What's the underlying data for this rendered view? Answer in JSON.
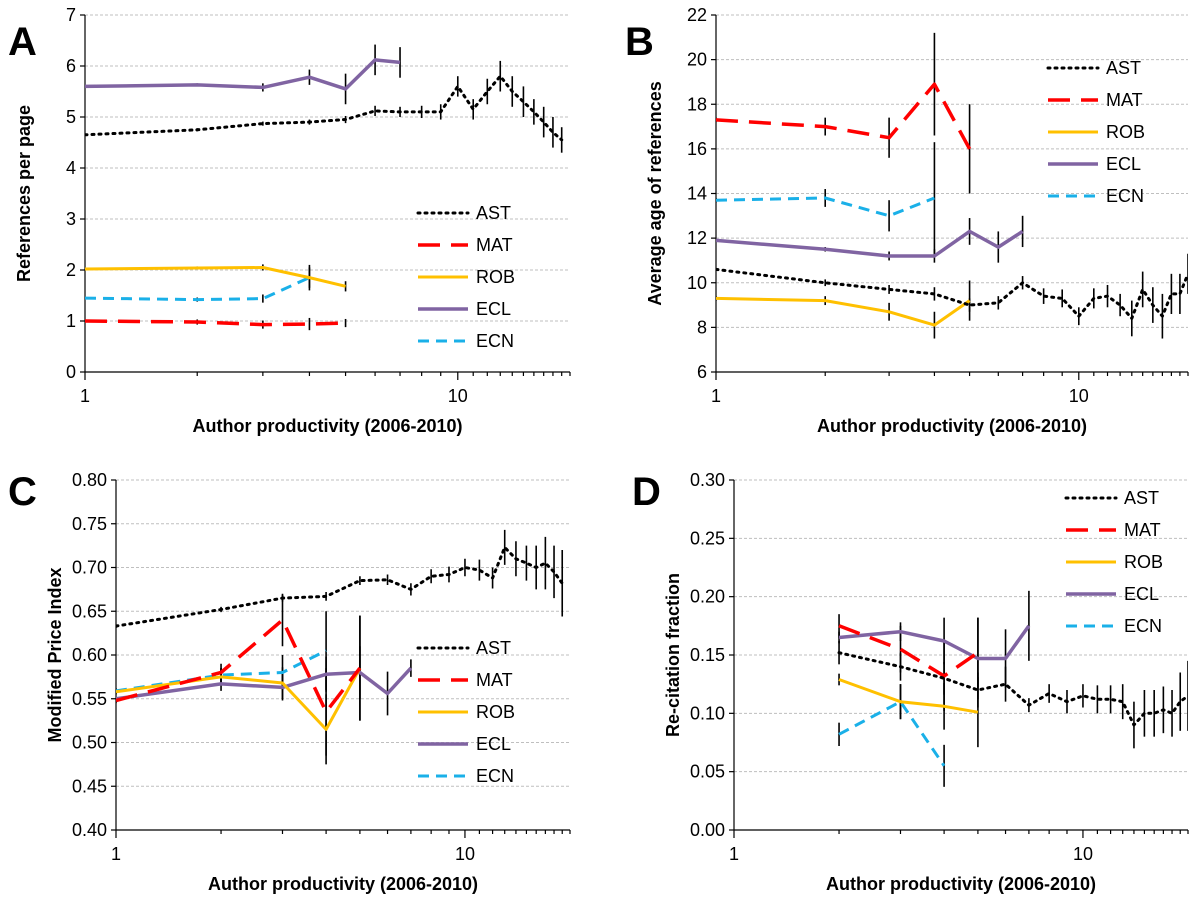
{
  "series_styles": {
    "AST": {
      "color": "#000000",
      "dash": "2,5",
      "width": 3
    },
    "MAT": {
      "color": "#ff0000",
      "dash": "22,11",
      "width": 3.5
    },
    "ROB": {
      "color": "#ffc000",
      "dash": "",
      "width": 3
    },
    "ECL": {
      "color": "#8064a2",
      "dash": "",
      "width": 3.5
    },
    "ECN": {
      "color": "#1ab0e8",
      "dash": "11,7",
      "width": 3
    }
  },
  "chart_data": [
    {
      "type": "line",
      "panel_letter": "A",
      "xlabel": "Author productivity (2006-2010)",
      "ylabel": "References per page",
      "xscale": "log",
      "xlim": [
        1,
        20
      ],
      "xticks": [
        1,
        10
      ],
      "xtick_labels": [
        "1",
        "10"
      ],
      "ylim": [
        0,
        7
      ],
      "yticks": [
        0,
        1,
        2,
        3,
        4,
        5,
        6,
        7
      ],
      "ytick_labels": [
        "0",
        "1",
        "2",
        "3",
        "4",
        "5",
        "6",
        "7"
      ],
      "grid": "horizontal",
      "legend_position": "right",
      "legend": [
        "AST",
        "MAT",
        "ROB",
        "ECL",
        "ECN"
      ],
      "series": [
        {
          "name": "AST",
          "x": [
            1,
            2,
            3,
            4,
            5,
            6,
            7,
            8,
            9,
            10,
            11,
            12,
            13,
            14,
            15,
            16,
            17,
            18,
            19
          ],
          "y": [
            4.65,
            4.75,
            4.87,
            4.9,
            4.95,
            5.12,
            5.1,
            5.1,
            5.1,
            5.6,
            5.15,
            5.5,
            5.8,
            5.5,
            5.3,
            5.1,
            4.9,
            4.7,
            4.55
          ],
          "err": [
            0.02,
            0.03,
            0.04,
            0.05,
            0.07,
            0.1,
            0.1,
            0.12,
            0.15,
            0.2,
            0.2,
            0.25,
            0.3,
            0.3,
            0.3,
            0.25,
            0.3,
            0.3,
            0.25
          ]
        },
        {
          "name": "MAT",
          "x": [
            1,
            2,
            3,
            4,
            5
          ],
          "y": [
            1.0,
            0.98,
            0.93,
            0.94,
            0.96
          ],
          "err": [
            0.02,
            0.05,
            0.08,
            0.12,
            0.08
          ]
        },
        {
          "name": "ROB",
          "x": [
            1,
            2,
            3,
            4,
            5
          ],
          "y": [
            2.02,
            2.04,
            2.05,
            1.85,
            1.68
          ],
          "err": [
            0.02,
            0.03,
            0.06,
            0.25,
            0.1
          ]
        },
        {
          "name": "ECL",
          "x": [
            1,
            2,
            3,
            4,
            5,
            6,
            7
          ],
          "y": [
            5.6,
            5.63,
            5.58,
            5.78,
            5.55,
            6.12,
            6.07
          ],
          "err": [
            0.02,
            0.03,
            0.08,
            0.15,
            0.3,
            0.3,
            0.3
          ]
        },
        {
          "name": "ECN",
          "x": [
            1,
            2,
            3,
            4
          ],
          "y": [
            1.45,
            1.42,
            1.44,
            1.85
          ],
          "err": [
            0.02,
            0.04,
            0.08,
            0.2
          ]
        }
      ]
    },
    {
      "type": "line",
      "panel_letter": "B",
      "xlabel": "Author productivity (2006-2010)",
      "ylabel": "Average age of references",
      "xscale": "log",
      "xlim": [
        1,
        20
      ],
      "xticks": [
        1,
        10
      ],
      "xtick_labels": [
        "1",
        "10"
      ],
      "ylim": [
        6,
        22
      ],
      "yticks": [
        6,
        8,
        10,
        12,
        14,
        16,
        18,
        20,
        22
      ],
      "ytick_labels": [
        "6",
        "8",
        "10",
        "12",
        "14",
        "16",
        "18",
        "20",
        "22"
      ],
      "grid": "horizontal",
      "legend_position": "top-right",
      "legend": [
        "AST",
        "MAT",
        "ROB",
        "ECL",
        "ECN"
      ],
      "series": [
        {
          "name": "AST",
          "x": [
            1,
            2,
            3,
            4,
            5,
            6,
            7,
            8,
            9,
            10,
            11,
            12,
            13,
            14,
            15,
            16,
            17,
            18,
            19,
            20
          ],
          "y": [
            10.6,
            10.0,
            9.7,
            9.5,
            9.0,
            9.1,
            10.0,
            9.4,
            9.3,
            8.5,
            9.3,
            9.4,
            9.0,
            8.4,
            9.7,
            9.0,
            8.5,
            9.5,
            9.5,
            10.4
          ],
          "err": [
            0.05,
            0.15,
            0.2,
            0.3,
            0.3,
            0.3,
            0.3,
            0.35,
            0.4,
            0.4,
            0.45,
            0.5,
            0.5,
            0.8,
            0.8,
            0.8,
            1.0,
            0.9,
            0.9,
            0.9
          ]
        },
        {
          "name": "MAT",
          "x": [
            1,
            2,
            3,
            4,
            5
          ],
          "y": [
            17.3,
            17.0,
            16.5,
            18.9,
            16.0
          ],
          "err": [
            0.1,
            0.4,
            0.9,
            2.3,
            2.0
          ]
        },
        {
          "name": "ROB",
          "x": [
            1,
            2,
            3,
            4,
            5
          ],
          "y": [
            9.3,
            9.2,
            8.7,
            8.1,
            9.2
          ],
          "err": [
            0.1,
            0.2,
            0.4,
            0.6,
            0.9
          ]
        },
        {
          "name": "ECL",
          "x": [
            1,
            2,
            3,
            4,
            5,
            6,
            7
          ],
          "y": [
            11.9,
            11.5,
            11.2,
            11.2,
            12.3,
            11.6,
            12.3
          ],
          "err": [
            0.05,
            0.1,
            0.2,
            0.3,
            0.6,
            0.7,
            0.7
          ]
        },
        {
          "name": "ECN",
          "x": [
            1,
            2,
            3,
            4
          ],
          "y": [
            13.7,
            13.8,
            13.0,
            13.8
          ],
          "err": [
            0.1,
            0.4,
            0.7,
            2.5
          ]
        }
      ]
    },
    {
      "type": "line",
      "panel_letter": "C",
      "xlabel": "Author productivity (2006-2010)",
      "ylabel": "Modified Price Index",
      "xscale": "log",
      "xlim": [
        1,
        20
      ],
      "xticks": [
        1,
        10
      ],
      "xtick_labels": [
        "1",
        "10"
      ],
      "ylim": [
        0.4,
        0.8
      ],
      "yticks": [
        0.4,
        0.45,
        0.5,
        0.55,
        0.6,
        0.65,
        0.7,
        0.75,
        0.8
      ],
      "ytick_labels": [
        "0.40",
        "0.45",
        "0.50",
        "0.55",
        "0.60",
        "0.65",
        "0.70",
        "0.75",
        "0.80"
      ],
      "grid": "horizontal",
      "legend_position": "bottom-right",
      "legend": [
        "AST",
        "MAT",
        "ROB",
        "ECL",
        "ECN"
      ],
      "series": [
        {
          "name": "AST",
          "x": [
            1,
            2,
            3,
            4,
            5,
            6,
            7,
            8,
            9,
            10,
            11,
            12,
            13,
            14,
            15,
            16,
            17,
            18,
            19
          ],
          "y": [
            0.633,
            0.652,
            0.665,
            0.667,
            0.685,
            0.686,
            0.675,
            0.69,
            0.692,
            0.7,
            0.697,
            0.688,
            0.723,
            0.71,
            0.705,
            0.7,
            0.705,
            0.695,
            0.682
          ],
          "err": [
            0.002,
            0.003,
            0.004,
            0.005,
            0.005,
            0.006,
            0.007,
            0.008,
            0.009,
            0.01,
            0.012,
            0.012,
            0.02,
            0.02,
            0.02,
            0.025,
            0.03,
            0.03,
            0.038
          ]
        },
        {
          "name": "MAT",
          "x": [
            1,
            2,
            3,
            4,
            5
          ],
          "y": [
            0.548,
            0.58,
            0.64,
            0.535,
            0.585
          ],
          "err": [
            0.003,
            0.01,
            0.03,
            0.05,
            0.06
          ]
        },
        {
          "name": "ROB",
          "x": [
            1,
            2,
            3,
            4,
            5
          ],
          "y": [
            0.558,
            0.575,
            0.568,
            0.515,
            0.585
          ],
          "err": [
            0.003,
            0.01,
            0.018,
            0.04,
            0.06
          ]
        },
        {
          "name": "ECL",
          "x": [
            1,
            2,
            3,
            4,
            5,
            6,
            7
          ],
          "y": [
            0.55,
            0.567,
            0.563,
            0.578,
            0.58,
            0.556,
            0.585
          ],
          "err": [
            0.002,
            0.008,
            0.015,
            0.02,
            0.03,
            0.025,
            0.01
          ]
        },
        {
          "name": "ECN",
          "x": [
            1,
            2,
            3,
            4
          ],
          "y": [
            0.559,
            0.577,
            0.58,
            0.605
          ],
          "err": [
            0.003,
            0.008,
            0.02,
            0.045
          ]
        }
      ]
    },
    {
      "type": "line",
      "panel_letter": "D",
      "xlabel": "Author productivity (2006-2010)",
      "ylabel": "Re-citation fraction",
      "xscale": "log",
      "xlim": [
        1,
        20
      ],
      "xticks": [
        1,
        10
      ],
      "xtick_labels": [
        "1",
        "10"
      ],
      "ylim": [
        0,
        0.3
      ],
      "yticks": [
        0,
        0.05,
        0.1,
        0.15,
        0.2,
        0.25,
        0.3
      ],
      "ytick_labels": [
        "0.00",
        "0.05",
        "0.10",
        "0.15",
        "0.20",
        "0.25",
        "0.30"
      ],
      "grid": "horizontal",
      "legend_position": "top-right",
      "legend": [
        "AST",
        "MAT",
        "ROB",
        "ECL",
        "ECN"
      ],
      "series": [
        {
          "name": "AST",
          "x": [
            2,
            3,
            4,
            5,
            6,
            7,
            8,
            9,
            10,
            11,
            12,
            13,
            14,
            15,
            16,
            17,
            18,
            19,
            20
          ],
          "y": [
            0.152,
            0.14,
            0.13,
            0.12,
            0.125,
            0.107,
            0.117,
            0.11,
            0.115,
            0.112,
            0.112,
            0.11,
            0.09,
            0.1,
            0.1,
            0.103,
            0.1,
            0.11,
            0.115
          ],
          "err": [
            0.01,
            0.012,
            0.014,
            0.015,
            0.015,
            0.006,
            0.008,
            0.01,
            0.01,
            0.012,
            0.012,
            0.015,
            0.02,
            0.02,
            0.02,
            0.02,
            0.02,
            0.025,
            0.03
          ]
        },
        {
          "name": "MAT",
          "x": [
            2,
            3,
            4,
            5
          ],
          "y": [
            0.175,
            0.155,
            0.132,
            0.152
          ],
          "err": [
            0.01,
            0.02,
            0.03,
            0.03
          ]
        },
        {
          "name": "ROB",
          "x": [
            2,
            3,
            4,
            5
          ],
          "y": [
            0.129,
            0.11,
            0.106,
            0.101
          ],
          "err": [
            0.005,
            0.015,
            0.02,
            0.03
          ]
        },
        {
          "name": "ECL",
          "x": [
            2,
            3,
            4,
            5,
            6,
            7
          ],
          "y": [
            0.165,
            0.17,
            0.162,
            0.147,
            0.147,
            0.175
          ],
          "err": [
            0.005,
            0.008,
            0.02,
            0.035,
            0.025,
            0.03
          ]
        },
        {
          "name": "ECN",
          "x": [
            2,
            3,
            4
          ],
          "y": [
            0.082,
            0.11,
            0.055
          ],
          "err": [
            0.01,
            0.015,
            0.018
          ]
        }
      ]
    }
  ]
}
